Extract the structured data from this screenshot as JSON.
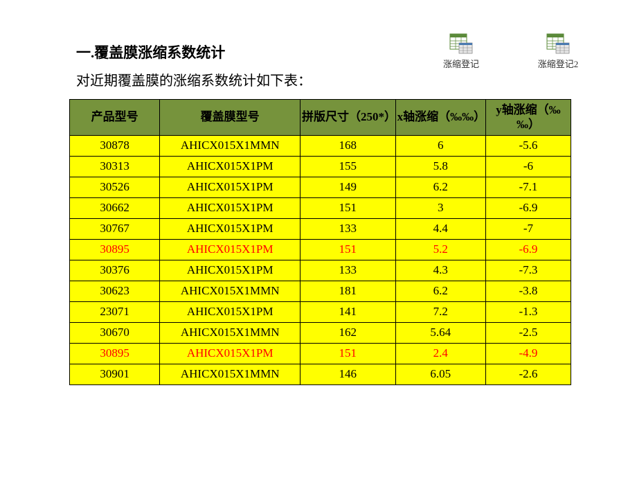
{
  "title": "一.覆盖膜涨缩系数统计",
  "subtitle": "对近期覆盖膜的涨缩系数统计如下表：",
  "files": [
    {
      "label": "涨缩登记"
    },
    {
      "label": "涨缩登记2"
    }
  ],
  "table": {
    "header_bg": "#76933c",
    "row_bg": "#ffff00",
    "highlight_color": "#ff0000",
    "border_color": "#000000",
    "columns": [
      "产品型号",
      "覆盖膜型号",
      "拼版尺寸（250*）",
      "x轴涨缩（‰‰）",
      "y轴涨缩（‰‰）"
    ],
    "rows": [
      {
        "cells": [
          "30878",
          "AHICX015X1MMN",
          "168",
          "6",
          "-5.6"
        ],
        "highlight": false
      },
      {
        "cells": [
          "30313",
          "AHICX015X1PM",
          "155",
          "5.8",
          "-6"
        ],
        "highlight": false
      },
      {
        "cells": [
          "30526",
          "AHICX015X1PM",
          "149",
          "6.2",
          "-7.1"
        ],
        "highlight": false
      },
      {
        "cells": [
          "30662",
          "AHICX015X1PM",
          "151",
          "3",
          "-6.9"
        ],
        "highlight": false
      },
      {
        "cells": [
          "30767",
          "AHICX015X1PM",
          "133",
          "4.4",
          "-7"
        ],
        "highlight": false
      },
      {
        "cells": [
          "30895",
          "AHICX015X1PM",
          "151",
          "5.2",
          "-6.9"
        ],
        "highlight": true
      },
      {
        "cells": [
          "30376",
          "AHICX015X1PM",
          "133",
          "4.3",
          "-7.3"
        ],
        "highlight": false
      },
      {
        "cells": [
          "30623",
          "AHICX015X1MMN",
          "181",
          "6.2",
          "-3.8"
        ],
        "highlight": false
      },
      {
        "cells": [
          "23071",
          "AHICX015X1PM",
          "141",
          "7.2",
          "-1.3"
        ],
        "highlight": false
      },
      {
        "cells": [
          "30670",
          "AHICX015X1MMN",
          "162",
          "5.64",
          "-2.5"
        ],
        "highlight": false
      },
      {
        "cells": [
          "30895",
          "AHICX015X1PM",
          "151",
          "2.4",
          "-4.9"
        ],
        "highlight": true
      },
      {
        "cells": [
          "30901",
          "AHICX015X1MMN",
          "146",
          "6.05",
          "-2.6"
        ],
        "highlight": false
      }
    ]
  }
}
